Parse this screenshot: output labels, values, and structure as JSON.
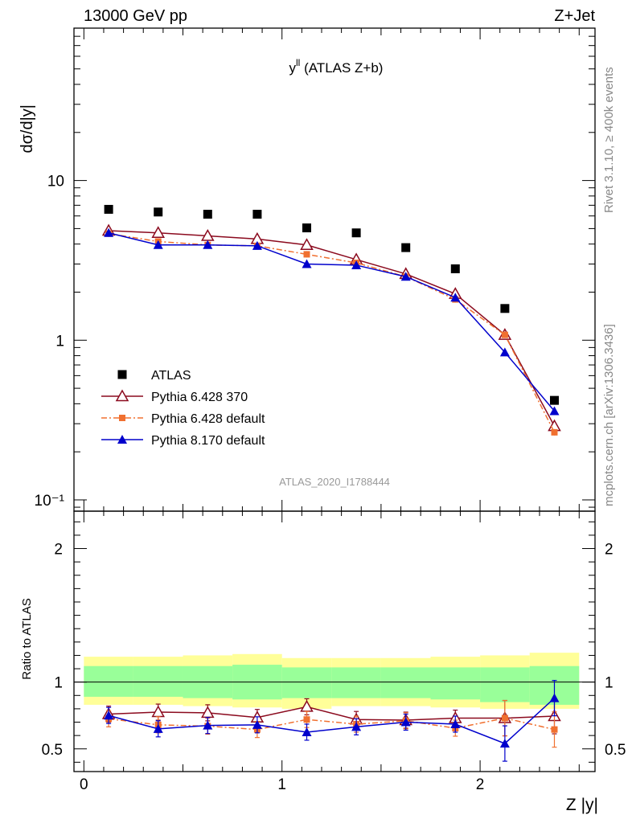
{
  "header": {
    "energy_label": "13000 GeV pp",
    "process_label": "Z+Jet",
    "rivet_label": "Rivet 3.1.10, ≥ 400k events",
    "mcplots_label": "mcplots.cern.ch [arXiv:1306.3436]",
    "analysis_label": "ATLAS_2020_I1788444"
  },
  "chart_data": [
    {
      "type": "scatter",
      "title_main": "y",
      "title_sup": "ll",
      "title_rest": " (ATLAS Z+b)",
      "ylabel": "dσ/d|y|",
      "xlabel": "",
      "xlim": [
        -0.05,
        2.58
      ],
      "ylim": [
        0.085,
        90
      ],
      "yscale": "log",
      "ytick_labels": [
        "10⁻¹",
        "1",
        "10"
      ],
      "legend_position": "lower-left",
      "x": [
        0.125,
        0.375,
        0.625,
        0.875,
        1.125,
        1.375,
        1.625,
        1.875,
        2.125,
        2.375
      ],
      "series": [
        {
          "name": "ATLAS",
          "color": "#000000",
          "marker": "filled-square",
          "values": [
            6.6,
            6.35,
            6.15,
            6.15,
            5.05,
            4.7,
            3.8,
            2.8,
            1.58,
            0.42
          ]
        },
        {
          "name": "Pythia 6.428 370",
          "color": "#8b0a1e",
          "marker": "open-triangle",
          "values": [
            4.85,
            4.7,
            4.5,
            4.3,
            3.95,
            3.2,
            2.6,
            1.95,
            1.08,
            0.29
          ]
        },
        {
          "name": "Pythia 6.428 default",
          "color": "#f07030",
          "marker": "filled-square-small",
          "dashed": true,
          "values": [
            4.65,
            4.15,
            3.95,
            3.9,
            3.45,
            3.05,
            2.5,
            1.8,
            1.08,
            0.265
          ]
        },
        {
          "name": "Pythia 8.170 default",
          "color": "#0000cc",
          "marker": "filled-triangle",
          "values": [
            4.7,
            3.95,
            3.95,
            3.9,
            3.0,
            2.95,
            2.5,
            1.85,
            0.84,
            0.36
          ]
        }
      ]
    },
    {
      "type": "line",
      "ylabel": "Ratio to ATLAS",
      "xlabel": "Z |y|",
      "xlim": [
        -0.05,
        2.58
      ],
      "ylim": [
        0.33,
        2.28
      ],
      "x_tick_labels": [
        "0",
        "1",
        "2"
      ],
      "y_tick_labels": [
        "0.5",
        "1",
        "2"
      ],
      "bands": {
        "inner_color": "#99ff99",
        "outer_color": "#ffff99",
        "inner": [
          [
            0.89,
            1.12
          ],
          [
            0.89,
            1.12
          ],
          [
            0.88,
            1.12
          ],
          [
            0.87,
            1.13
          ],
          [
            0.88,
            1.11
          ],
          [
            0.88,
            1.11
          ],
          [
            0.88,
            1.11
          ],
          [
            0.87,
            1.11
          ],
          [
            0.85,
            1.11
          ],
          [
            0.83,
            1.12
          ]
        ],
        "outer": [
          [
            0.83,
            1.19
          ],
          [
            0.83,
            1.19
          ],
          [
            0.82,
            1.2
          ],
          [
            0.81,
            1.21
          ],
          [
            0.8,
            1.18
          ],
          [
            0.82,
            1.18
          ],
          [
            0.82,
            1.18
          ],
          [
            0.81,
            1.19
          ],
          [
            0.8,
            1.2
          ],
          [
            0.8,
            1.22
          ]
        ]
      },
      "series": [
        {
          "name": "Pythia 6.428 370",
          "color": "#8b0a1e",
          "values": [
            0.76,
            0.775,
            0.77,
            0.735,
            0.815,
            0.72,
            0.715,
            0.73,
            0.73,
            0.745
          ]
        },
        {
          "name": "Pythia 6.428 default",
          "color": "#f07030",
          "values": [
            0.725,
            0.68,
            0.67,
            0.645,
            0.72,
            0.685,
            0.71,
            0.655,
            0.73,
            0.645
          ]
        },
        {
          "name": "Pythia 8.170 default",
          "color": "#0000cc",
          "values": [
            0.75,
            0.65,
            0.675,
            0.68,
            0.625,
            0.665,
            0.7,
            0.685,
            0.54,
            0.88
          ]
        }
      ]
    }
  ]
}
